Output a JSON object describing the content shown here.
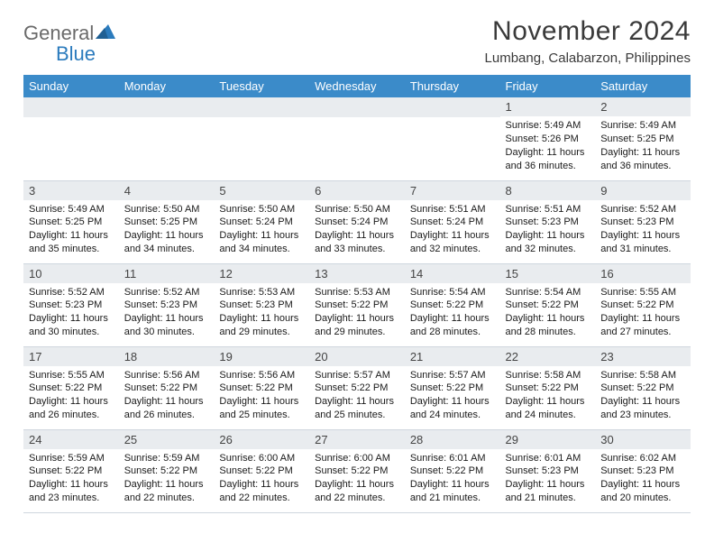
{
  "logo": {
    "text1": "General",
    "text2": "Blue"
  },
  "title": "November 2024",
  "location": "Lumbang, Calabarzon, Philippines",
  "columns": [
    "Sunday",
    "Monday",
    "Tuesday",
    "Wednesday",
    "Thursday",
    "Friday",
    "Saturday"
  ],
  "style": {
    "header_bg": "#3b8bc9",
    "header_fg": "#ffffff",
    "daynum_bg": "#e9ecef",
    "border_color": "#cfd6de",
    "title_color": "#3a3a3a",
    "logo_gray": "#6a6a6a",
    "logo_blue": "#2b7bbd",
    "title_fontsize": 30,
    "location_fontsize": 15,
    "header_fontsize": 13,
    "daynum_fontsize": 13,
    "info_fontsize": 11
  },
  "weeks": [
    [
      null,
      null,
      null,
      null,
      null,
      {
        "n": "1",
        "sr": "5:49 AM",
        "ss": "5:26 PM",
        "dl": "11 hours and 36 minutes."
      },
      {
        "n": "2",
        "sr": "5:49 AM",
        "ss": "5:25 PM",
        "dl": "11 hours and 36 minutes."
      }
    ],
    [
      {
        "n": "3",
        "sr": "5:49 AM",
        "ss": "5:25 PM",
        "dl": "11 hours and 35 minutes."
      },
      {
        "n": "4",
        "sr": "5:50 AM",
        "ss": "5:25 PM",
        "dl": "11 hours and 34 minutes."
      },
      {
        "n": "5",
        "sr": "5:50 AM",
        "ss": "5:24 PM",
        "dl": "11 hours and 34 minutes."
      },
      {
        "n": "6",
        "sr": "5:50 AM",
        "ss": "5:24 PM",
        "dl": "11 hours and 33 minutes."
      },
      {
        "n": "7",
        "sr": "5:51 AM",
        "ss": "5:24 PM",
        "dl": "11 hours and 32 minutes."
      },
      {
        "n": "8",
        "sr": "5:51 AM",
        "ss": "5:23 PM",
        "dl": "11 hours and 32 minutes."
      },
      {
        "n": "9",
        "sr": "5:52 AM",
        "ss": "5:23 PM",
        "dl": "11 hours and 31 minutes."
      }
    ],
    [
      {
        "n": "10",
        "sr": "5:52 AM",
        "ss": "5:23 PM",
        "dl": "11 hours and 30 minutes."
      },
      {
        "n": "11",
        "sr": "5:52 AM",
        "ss": "5:23 PM",
        "dl": "11 hours and 30 minutes."
      },
      {
        "n": "12",
        "sr": "5:53 AM",
        "ss": "5:23 PM",
        "dl": "11 hours and 29 minutes."
      },
      {
        "n": "13",
        "sr": "5:53 AM",
        "ss": "5:22 PM",
        "dl": "11 hours and 29 minutes."
      },
      {
        "n": "14",
        "sr": "5:54 AM",
        "ss": "5:22 PM",
        "dl": "11 hours and 28 minutes."
      },
      {
        "n": "15",
        "sr": "5:54 AM",
        "ss": "5:22 PM",
        "dl": "11 hours and 28 minutes."
      },
      {
        "n": "16",
        "sr": "5:55 AM",
        "ss": "5:22 PM",
        "dl": "11 hours and 27 minutes."
      }
    ],
    [
      {
        "n": "17",
        "sr": "5:55 AM",
        "ss": "5:22 PM",
        "dl": "11 hours and 26 minutes."
      },
      {
        "n": "18",
        "sr": "5:56 AM",
        "ss": "5:22 PM",
        "dl": "11 hours and 26 minutes."
      },
      {
        "n": "19",
        "sr": "5:56 AM",
        "ss": "5:22 PM",
        "dl": "11 hours and 25 minutes."
      },
      {
        "n": "20",
        "sr": "5:57 AM",
        "ss": "5:22 PM",
        "dl": "11 hours and 25 minutes."
      },
      {
        "n": "21",
        "sr": "5:57 AM",
        "ss": "5:22 PM",
        "dl": "11 hours and 24 minutes."
      },
      {
        "n": "22",
        "sr": "5:58 AM",
        "ss": "5:22 PM",
        "dl": "11 hours and 24 minutes."
      },
      {
        "n": "23",
        "sr": "5:58 AM",
        "ss": "5:22 PM",
        "dl": "11 hours and 23 minutes."
      }
    ],
    [
      {
        "n": "24",
        "sr": "5:59 AM",
        "ss": "5:22 PM",
        "dl": "11 hours and 23 minutes."
      },
      {
        "n": "25",
        "sr": "5:59 AM",
        "ss": "5:22 PM",
        "dl": "11 hours and 22 minutes."
      },
      {
        "n": "26",
        "sr": "6:00 AM",
        "ss": "5:22 PM",
        "dl": "11 hours and 22 minutes."
      },
      {
        "n": "27",
        "sr": "6:00 AM",
        "ss": "5:22 PM",
        "dl": "11 hours and 22 minutes."
      },
      {
        "n": "28",
        "sr": "6:01 AM",
        "ss": "5:22 PM",
        "dl": "11 hours and 21 minutes."
      },
      {
        "n": "29",
        "sr": "6:01 AM",
        "ss": "5:23 PM",
        "dl": "11 hours and 21 minutes."
      },
      {
        "n": "30",
        "sr": "6:02 AM",
        "ss": "5:23 PM",
        "dl": "11 hours and 20 minutes."
      }
    ]
  ],
  "labels": {
    "sunrise": "Sunrise: ",
    "sunset": "Sunset: ",
    "daylight": "Daylight: "
  }
}
